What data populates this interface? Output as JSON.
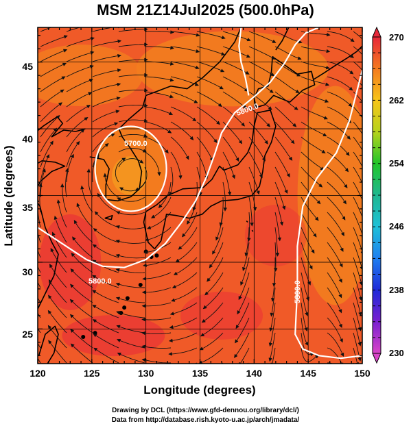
{
  "title": "MSM 21Z14Jul2025 (500.0hPa)",
  "x_axis": {
    "label": "Longitude (degrees)",
    "range": [
      120,
      150
    ],
    "ticks": [
      "120",
      "125",
      "130",
      "135",
      "140",
      "145",
      "150"
    ]
  },
  "y_axis": {
    "label": "Latitude  (degrees)",
    "range": [
      22.4,
      47.6
    ],
    "ticks": [
      "25",
      "30",
      "35",
      "40",
      "45"
    ]
  },
  "colorbar": {
    "range": [
      230,
      270
    ],
    "ticks": [
      "230",
      "238",
      "246",
      "254",
      "262",
      "270"
    ]
  },
  "contours": [
    {
      "label": "5700.0"
    },
    {
      "label": "5800.0"
    },
    {
      "label": "5800.0"
    },
    {
      "label": "5800.0"
    }
  ],
  "credits": {
    "line1": "Drawing by DCL (https://www.gfd-dennou.org/library/dcl/)",
    "line2": "Data from http://database.rish.kyoto-u.ac.jp/arch/jmadata/"
  },
  "colors": {
    "field_warm": "#f05a28",
    "field_hot": "#e8283a",
    "field_orange": "#f27d1e",
    "contour": "#ffffff",
    "coastline": "#000000"
  }
}
